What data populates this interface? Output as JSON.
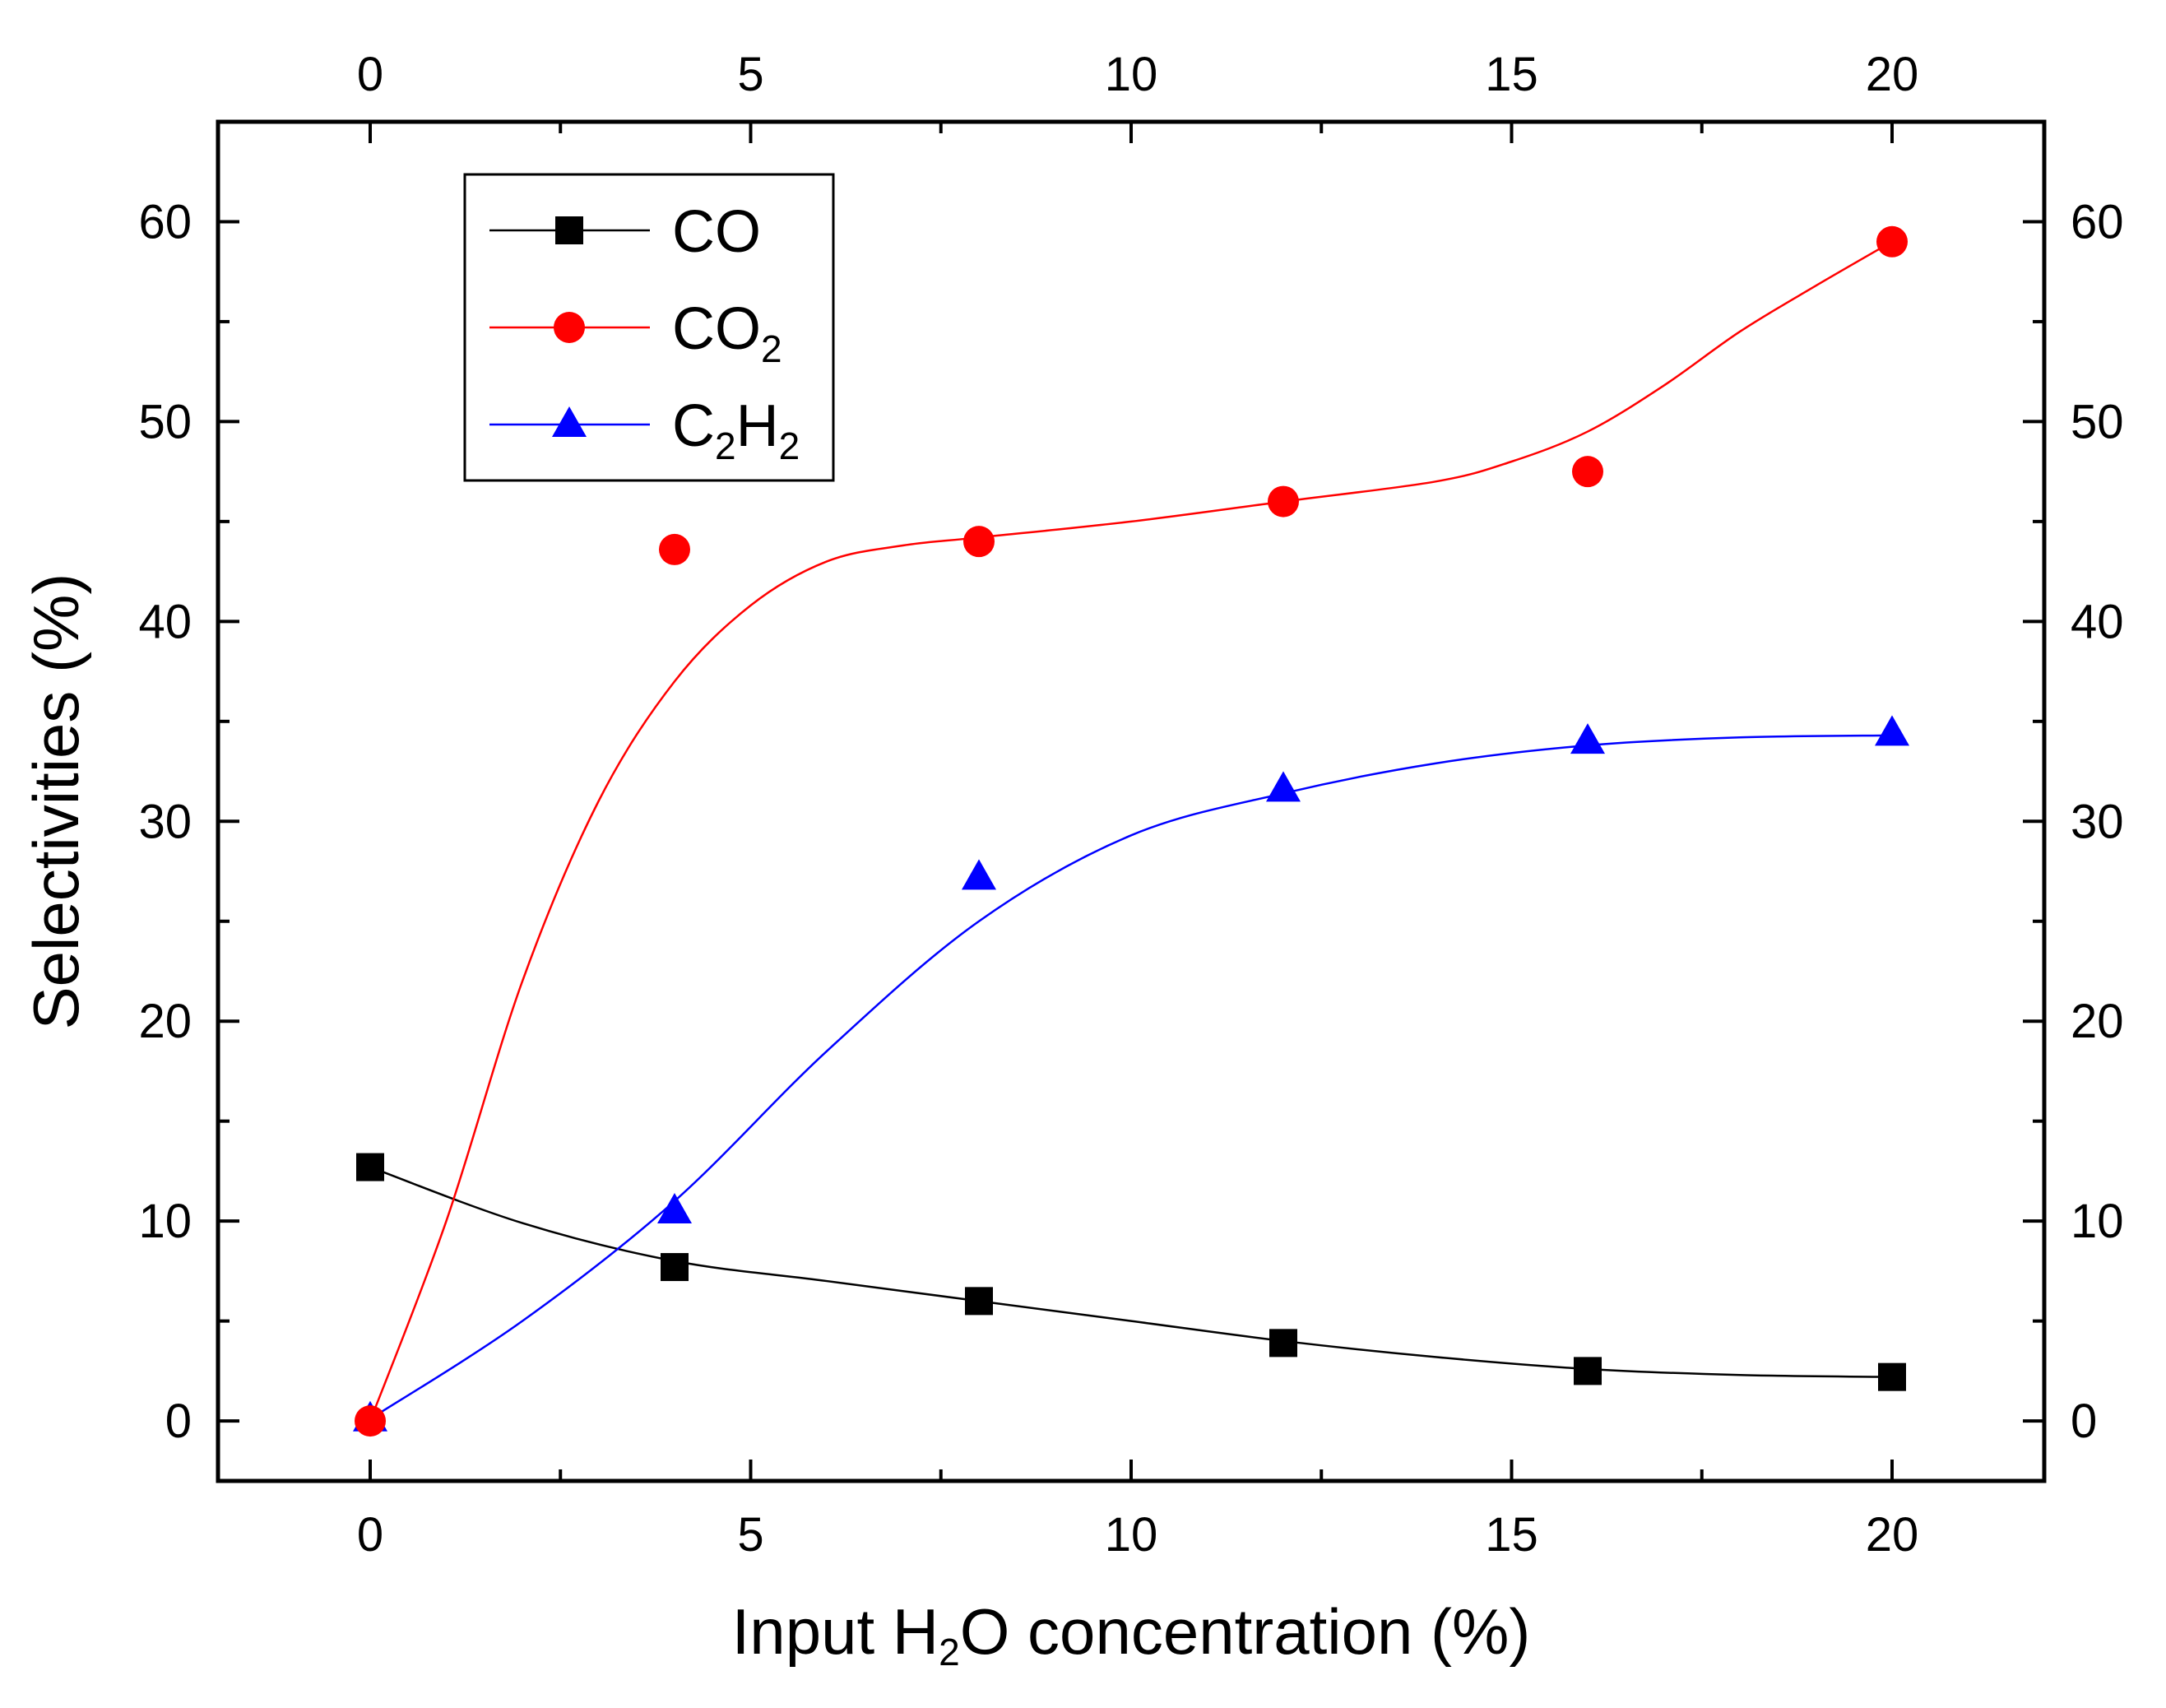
{
  "chart_data": {
    "type": "scatter",
    "title": "",
    "xlabel": {
      "prefix": "Input H",
      "sub": "2",
      "suffix": "O concentration (%)"
    },
    "ylabel": "Selectivities (%)",
    "xlim": [
      -2,
      22
    ],
    "ylim": [
      -3,
      65
    ],
    "x_ticks": [
      0,
      5,
      10,
      15,
      20
    ],
    "y_ticks": [
      0,
      10,
      20,
      30,
      40,
      50,
      60
    ],
    "x_tick_labels": [
      "0",
      "5",
      "10",
      "15",
      "20"
    ],
    "y_tick_labels": [
      "0",
      "10",
      "20",
      "30",
      "40",
      "50",
      "60"
    ],
    "legend_position": "top-left",
    "series": [
      {
        "name": "CO",
        "label": {
          "parts": [
            {
              "t": "CO"
            }
          ]
        },
        "color": "#000000",
        "marker": "square",
        "x": [
          0,
          4,
          8,
          12,
          16,
          20
        ],
        "values": [
          12.7,
          7.7,
          6.0,
          3.9,
          2.5,
          2.2
        ],
        "fit": [
          [
            0,
            12.7
          ],
          [
            2,
            9.9
          ],
          [
            4,
            8.0
          ],
          [
            6,
            7.0
          ],
          [
            8,
            6.0
          ],
          [
            10,
            5.0
          ],
          [
            12,
            4.0
          ],
          [
            14,
            3.2
          ],
          [
            16,
            2.6
          ],
          [
            18,
            2.3
          ],
          [
            20,
            2.2
          ]
        ]
      },
      {
        "name": "CO2",
        "label": {
          "parts": [
            {
              "t": "CO"
            },
            {
              "t": "2",
              "sub": true
            }
          ]
        },
        "color": "#ff0000",
        "marker": "circle",
        "x": [
          0,
          4,
          8,
          12,
          16,
          20
        ],
        "values": [
          0,
          43.6,
          44.0,
          46.0,
          47.5,
          59.0
        ],
        "fit": [
          [
            0,
            0
          ],
          [
            1,
            10
          ],
          [
            2,
            22
          ],
          [
            3,
            31
          ],
          [
            4,
            37
          ],
          [
            5,
            40.8
          ],
          [
            6,
            43.0
          ],
          [
            7,
            43.8
          ],
          [
            8,
            44.2
          ],
          [
            10,
            45.0
          ],
          [
            12,
            46.0
          ],
          [
            14,
            47.0
          ],
          [
            15,
            48.0
          ],
          [
            16,
            49.5
          ],
          [
            17,
            51.8
          ],
          [
            18,
            54.5
          ],
          [
            19,
            56.8
          ],
          [
            20,
            59.0
          ]
        ]
      },
      {
        "name": "C2H2",
        "label": {
          "parts": [
            {
              "t": "C"
            },
            {
              "t": "2",
              "sub": true
            },
            {
              "t": "H"
            },
            {
              "t": "2",
              "sub": true
            }
          ]
        },
        "color": "#0000ff",
        "marker": "triangle",
        "x": [
          0,
          4,
          8,
          12,
          16,
          20
        ],
        "values": [
          0.1,
          10.5,
          27.2,
          31.6,
          34.0,
          34.4
        ],
        "fit": [
          [
            0,
            0.1
          ],
          [
            2,
            5.0
          ],
          [
            4,
            11.0
          ],
          [
            6,
            18.5
          ],
          [
            8,
            25.0
          ],
          [
            10,
            29.3
          ],
          [
            12,
            31.4
          ],
          [
            14,
            32.9
          ],
          [
            16,
            33.8
          ],
          [
            18,
            34.2
          ],
          [
            20,
            34.3
          ]
        ]
      }
    ]
  }
}
